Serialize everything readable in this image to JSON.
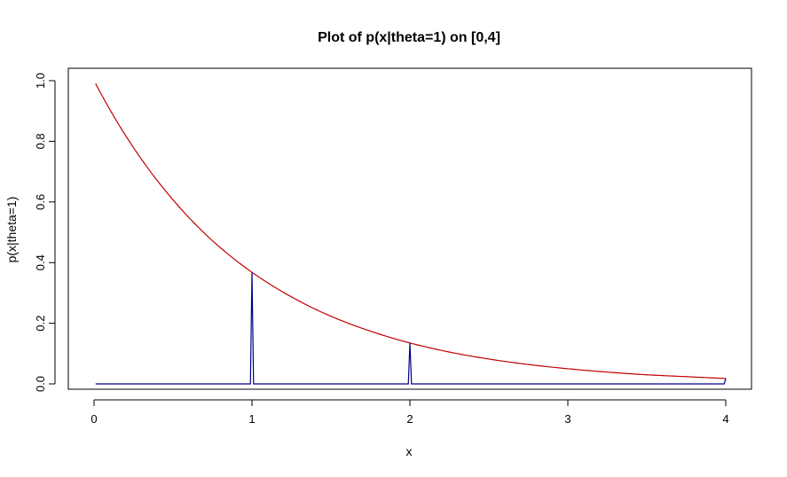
{
  "chart_data": {
    "type": "line",
    "title": "Plot of p(x|theta=1) on [0,4]",
    "xlabel": "x",
    "ylabel": "p(x|theta=1)",
    "xlim": [
      0,
      4
    ],
    "ylim": [
      0,
      1
    ],
    "x_ticks": [
      "0",
      "1",
      "2",
      "3",
      "4"
    ],
    "y_ticks": [
      "0.0",
      "0.2",
      "0.4",
      "0.6",
      "0.8",
      "1.0"
    ],
    "grid": false,
    "legend": "none",
    "series": [
      {
        "color": "#c00000",
        "style": "curve",
        "x": [
          0.01,
          0.25,
          0.5,
          0.75,
          1.0,
          1.25,
          1.5,
          1.75,
          2.0,
          2.25,
          2.5,
          2.75,
          3.0,
          3.25,
          3.5,
          3.75,
          4.0
        ],
        "y": [
          0.99,
          0.779,
          0.607,
          0.472,
          0.368,
          0.287,
          0.223,
          0.174,
          0.135,
          0.105,
          0.082,
          0.064,
          0.05,
          0.039,
          0.03,
          0.024,
          0.018
        ]
      },
      {
        "color": "#00008b",
        "style": "spikes",
        "x": [
          0.01,
          0.99,
          1.0,
          1.01,
          1.99,
          2.0,
          2.01,
          3.99,
          4.0
        ],
        "y": [
          0.0,
          0.0,
          0.368,
          0.0,
          0.0,
          0.135,
          0.0,
          0.0,
          0.018
        ]
      }
    ]
  }
}
